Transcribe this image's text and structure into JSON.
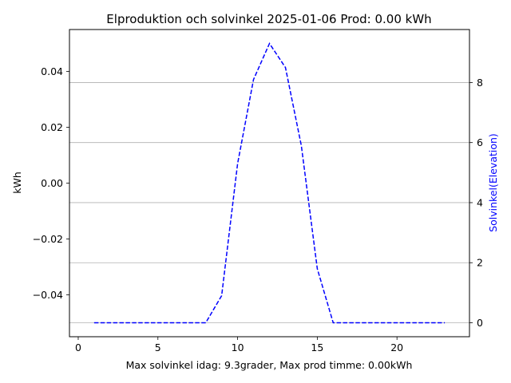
{
  "chart_data": {
    "type": "line",
    "title": "Elproduktion och solvinkel 2025-01-06 Prod: 0.00 kWh",
    "xlabel": "Max solvinkel idag: 9.3grader, Max prod timme: 0.00kWh",
    "ylabel_left": "kWh",
    "ylabel_right": "Solvinkel(Elevation)",
    "xlim": [
      -0.55,
      24.55
    ],
    "ylim_left": [
      -0.055,
      0.055
    ],
    "ylim_right": [
      -0.465,
      9.765
    ],
    "x_ticks": [
      0,
      5,
      10,
      15,
      20
    ],
    "x_tick_labels": [
      "0",
      "5",
      "10",
      "15",
      "20"
    ],
    "left_ticks": [
      0.04,
      0.02,
      0.0,
      -0.02,
      -0.04
    ],
    "left_tick_labels": [
      "0.04",
      "0.02",
      "0.00",
      "−0.02",
      "−0.04"
    ],
    "right_ticks": [
      8,
      6,
      4,
      2,
      0
    ],
    "right_tick_labels": [
      "8",
      "6",
      "4",
      "2",
      "0"
    ],
    "grid": "horizontal",
    "series": [
      {
        "axis": "right",
        "color": "#0000ff",
        "style": "dashed",
        "x": [
          1,
          2,
          3,
          4,
          5,
          6,
          7,
          8,
          9,
          10,
          11,
          12,
          13,
          14,
          15,
          16,
          17,
          18,
          19,
          20,
          21,
          22,
          23
        ],
        "values": [
          0,
          0,
          0,
          0,
          0,
          0,
          0,
          0,
          0.9,
          5.3,
          8.1,
          9.3,
          8.5,
          5.9,
          1.8,
          0,
          0,
          0,
          0,
          0,
          0,
          0,
          0
        ]
      }
    ],
    "colors": {
      "right_axis_label": "#0000ff",
      "grid": "#b0b0b0"
    }
  }
}
